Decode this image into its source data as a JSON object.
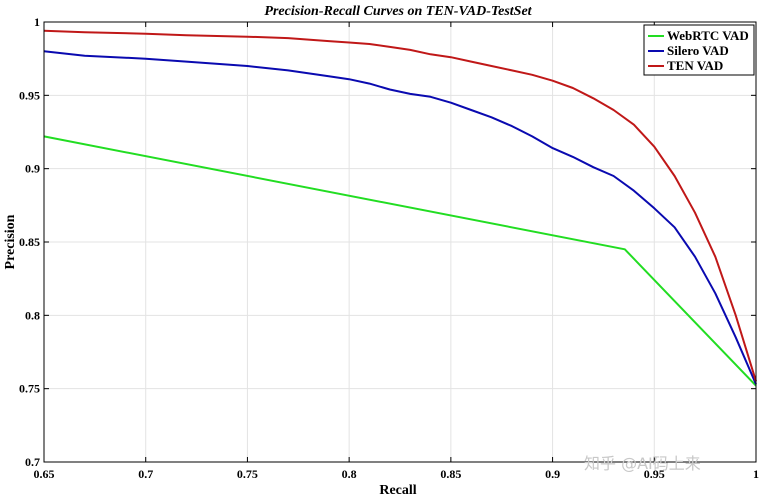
{
  "chart_data": {
    "type": "line",
    "title": "Precision-Recall Curves on TEN-VAD-TestSet",
    "xlabel": "Recall",
    "ylabel": "Precision",
    "xlim": [
      0.65,
      1
    ],
    "ylim": [
      0.7,
      1
    ],
    "xticks": [
      0.65,
      0.7,
      0.75,
      0.8,
      0.85,
      0.9,
      0.95,
      1
    ],
    "xtick_labels": [
      "0.65",
      "0.7",
      "0.75",
      "0.8",
      "0.85",
      "0.9",
      "0.95",
      "1"
    ],
    "yticks": [
      0.7,
      0.75,
      0.8,
      0.85,
      0.9,
      0.95,
      1
    ],
    "ytick_labels": [
      "0.7",
      "0.75",
      "0.8",
      "0.85",
      "0.9",
      "0.95",
      "1"
    ],
    "grid": true,
    "legend_position": "top-right",
    "series": [
      {
        "name": "WebRTC VAD",
        "color": "#22dd22",
        "x": [
          0.65,
          0.9355,
          1.0
        ],
        "y": [
          0.922,
          0.845,
          0.752
        ]
      },
      {
        "name": "Silero VAD",
        "color": "#0a0ab0",
        "x": [
          0.65,
          0.67,
          0.7,
          0.72,
          0.75,
          0.77,
          0.79,
          0.8,
          0.81,
          0.82,
          0.83,
          0.84,
          0.85,
          0.86,
          0.87,
          0.88,
          0.89,
          0.9,
          0.91,
          0.92,
          0.93,
          0.94,
          0.95,
          0.96,
          0.97,
          0.98,
          0.99,
          1.0
        ],
        "y": [
          0.98,
          0.977,
          0.975,
          0.973,
          0.97,
          0.967,
          0.963,
          0.961,
          0.958,
          0.954,
          0.951,
          0.949,
          0.945,
          0.94,
          0.935,
          0.929,
          0.922,
          0.914,
          0.908,
          0.901,
          0.895,
          0.885,
          0.873,
          0.86,
          0.84,
          0.815,
          0.785,
          0.753
        ]
      },
      {
        "name": "TEN VAD",
        "color": "#c01818",
        "x": [
          0.65,
          0.67,
          0.7,
          0.72,
          0.75,
          0.77,
          0.79,
          0.8,
          0.81,
          0.82,
          0.83,
          0.84,
          0.85,
          0.86,
          0.87,
          0.88,
          0.89,
          0.9,
          0.91,
          0.92,
          0.93,
          0.94,
          0.95,
          0.96,
          0.97,
          0.98,
          0.99,
          1.0
        ],
        "y": [
          0.994,
          0.993,
          0.992,
          0.991,
          0.99,
          0.989,
          0.987,
          0.986,
          0.985,
          0.983,
          0.981,
          0.978,
          0.976,
          0.973,
          0.97,
          0.967,
          0.964,
          0.96,
          0.955,
          0.948,
          0.94,
          0.93,
          0.915,
          0.895,
          0.87,
          0.84,
          0.8,
          0.755
        ]
      }
    ]
  },
  "watermark": "知乎 @AI码上来"
}
